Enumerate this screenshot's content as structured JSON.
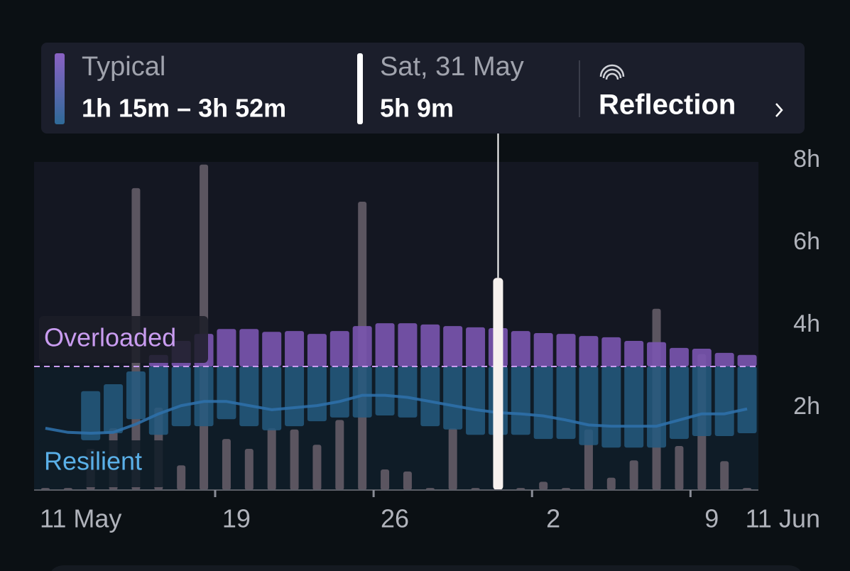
{
  "chart_data": {
    "type": "range_bar",
    "summary": {
      "label": "Typical",
      "range": "1h 15m – 3h 52m",
      "selected_date": "Sat, 31 May",
      "selected_value": "5h 9m",
      "link": "Reflection"
    },
    "zones": {
      "upper": "Overloaded",
      "lower": "Resilient"
    },
    "threshold": 3,
    "highlight": 20,
    "categories": [
      "11 May",
      null,
      null,
      null,
      null,
      null,
      null,
      null,
      "19",
      null,
      null,
      null,
      null,
      null,
      null,
      "26",
      null,
      null,
      null,
      null,
      null,
      null,
      "2",
      null,
      null,
      null,
      null,
      null,
      null,
      "9",
      null,
      "11 Jun"
    ],
    "daily": {
      "color": "#5b5560",
      "values": [
        0.05,
        0.05,
        1.0,
        1.5,
        7.33,
        2.0,
        0.6,
        7.9,
        1.24,
        1.0,
        1.5,
        1.47,
        1.1,
        1.7,
        7.0,
        0.5,
        0.45,
        0.05,
        1.5,
        0.05,
        5.15,
        0.05,
        0.2,
        0.05,
        1.47,
        0.3,
        0.72,
        4.4,
        1.07,
        3.3,
        0.7,
        0.05
      ]
    },
    "range_lower": {
      "color": "#245a80",
      "values": [
        null,
        null,
        1.21,
        1.38,
        1.72,
        1.34,
        1.55,
        1.55,
        1.72,
        1.55,
        1.45,
        1.55,
        1.67,
        1.76,
        1.76,
        1.81,
        1.76,
        1.55,
        1.47,
        1.34,
        1.34,
        1.34,
        1.24,
        1.24,
        1.09,
        1.03,
        1.03,
        1.03,
        1.24,
        1.31,
        1.31,
        1.38
      ]
    },
    "range_upper": {
      "color": "#7a55b0",
      "values": [
        null,
        null,
        2.4,
        2.57,
        2.88,
        3.28,
        3.62,
        3.79,
        3.91,
        3.91,
        3.84,
        3.86,
        3.79,
        3.86,
        3.98,
        4.05,
        4.05,
        4.02,
        3.98,
        3.95,
        3.93,
        3.86,
        3.81,
        3.79,
        3.74,
        3.71,
        3.62,
        3.59,
        3.45,
        3.43,
        3.33,
        3.28
      ]
    },
    "trend": {
      "color": "#2e6fa8",
      "values": [
        1.5,
        1.4,
        1.38,
        1.4,
        1.6,
        1.85,
        2.05,
        2.15,
        2.15,
        2.05,
        1.95,
        2.0,
        2.05,
        2.15,
        2.3,
        2.3,
        2.25,
        2.15,
        2.05,
        1.95,
        1.88,
        1.85,
        1.8,
        1.7,
        1.58,
        1.55,
        1.55,
        1.55,
        1.7,
        1.85,
        1.85,
        1.97
      ]
    },
    "ylim": [
      0,
      8
    ],
    "yticks": [
      {
        "value": 2,
        "label": "2h"
      },
      {
        "value": 4,
        "label": "4h"
      },
      {
        "value": 6,
        "label": "6h"
      },
      {
        "value": 8,
        "label": "8h"
      }
    ]
  }
}
